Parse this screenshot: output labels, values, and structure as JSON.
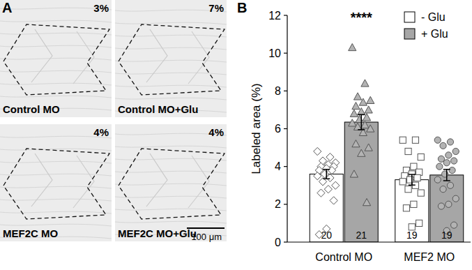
{
  "panel_a": {
    "label": "A",
    "images": [
      {
        "caption": "Control MO",
        "annotation": "3%"
      },
      {
        "caption": "Control MO+Glu",
        "annotation": "7%"
      },
      {
        "caption": "MEF2C MO",
        "annotation": "4%"
      },
      {
        "caption": "MEF2C MO+Glu",
        "annotation": "4%"
      }
    ],
    "scale_bar": "100 μm"
  },
  "chart_data": {
    "type": "bar",
    "panel_label": "B",
    "y_label": "Labeled area (%)",
    "categories": [
      "Control MO",
      "MEF2 MO"
    ],
    "ylim": [
      0,
      12
    ],
    "yticks": [
      0,
      2,
      4,
      6,
      8,
      10,
      12
    ],
    "legend": "top-right",
    "grid": false,
    "series": [
      {
        "name": "- Glu",
        "color": "#ffffff",
        "values": [
          3.6,
          3.3
        ],
        "errors": [
          0.25,
          0.28
        ],
        "n": [
          20,
          19
        ],
        "points": [
          [
            4.8,
            4.5,
            4.3,
            4.2,
            4.1,
            4.0,
            4.0,
            3.9,
            3.8,
            3.8,
            3.6,
            3.5,
            3.4,
            3.2,
            3.0,
            2.8,
            2.6,
            2.2,
            0.7,
            0.4
          ],
          [
            5.4,
            5.4,
            4.8,
            4.5,
            4.0,
            3.8,
            3.7,
            3.6,
            3.5,
            3.4,
            3.3,
            3.2,
            3.0,
            2.8,
            2.6,
            2.0,
            1.8,
            1.0,
            0.8
          ]
        ]
      },
      {
        "name": "+ Glu",
        "color": "#a6a6a6",
        "values": [
          6.35,
          3.55
        ],
        "errors": [
          0.4,
          0.3
        ],
        "n": [
          21,
          19
        ],
        "points": [
          [
            10.3,
            8.4,
            7.7,
            7.5,
            7.4,
            7.2,
            7.0,
            6.9,
            6.8,
            6.6,
            6.5,
            6.3,
            6.2,
            6.1,
            6.0,
            5.8,
            5.2,
            5.0,
            4.7,
            3.6,
            2.1
          ],
          [
            5.4,
            5.3,
            5.1,
            4.8,
            4.6,
            4.4,
            4.3,
            4.2,
            4.0,
            3.8,
            3.6,
            3.3,
            3.0,
            2.8,
            2.3,
            2.0,
            1.9,
            0.9,
            0.6
          ]
        ]
      }
    ],
    "annotations": [
      {
        "text": "****",
        "series": 1,
        "category": 0
      }
    ]
  }
}
